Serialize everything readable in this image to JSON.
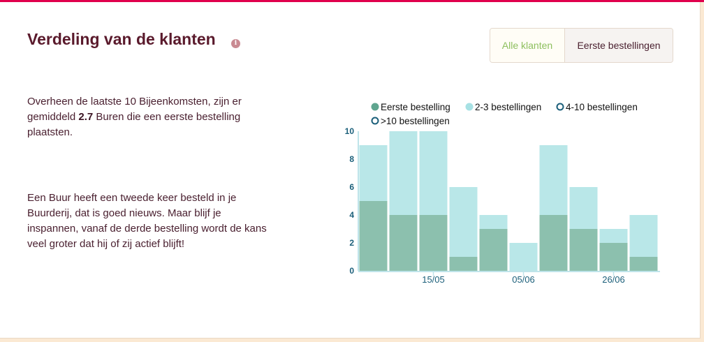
{
  "header": {
    "title": "Verdeling van de klanten",
    "info_icon": "info-icon"
  },
  "toggle": {
    "active_label": "Alle klanten",
    "inactive_label": "Eerste bestellingen"
  },
  "text": {
    "p1_before": "Overheen de laatste 10 Bijeenkomsten, zijn er gemiddeld ",
    "p1_value": "2.7",
    "p1_after": " Buren die een eerste bestelling plaatsten.",
    "p2": "Een Buur heeft een tweede keer besteld in je Buurderij, dat is goed nieuws. Maar blijf je inspannen, vanaf de derde bestelling wordt de kans veel groter dat hij of zij actief blijft!"
  },
  "colors": {
    "first": "#8cc0ae",
    "second": "#b9e7e8",
    "axis": "#bfe4ea",
    "tick": "#1b5f7a",
    "legend_first": "#5fa58f",
    "legend_second": "#a7e1e4",
    "legend_ring": "#1b5f7a"
  },
  "chart_data": {
    "type": "bar",
    "stacked": true,
    "ylim": [
      0,
      10
    ],
    "yticks": [
      "0",
      "2",
      "4",
      "6",
      "8",
      "10"
    ],
    "xticks": [
      {
        "index": 2.5,
        "label": "15/05"
      },
      {
        "index": 5.5,
        "label": "05/06"
      },
      {
        "index": 8.5,
        "label": "26/06"
      }
    ],
    "series": [
      {
        "name": "Eerste bestelling",
        "values": [
          5,
          4,
          4,
          1,
          3,
          0,
          4,
          3,
          2,
          1
        ]
      },
      {
        "name": "2-3 bestellingen",
        "values": [
          4,
          6,
          6,
          5,
          1,
          2,
          5,
          3,
          1,
          3
        ]
      },
      {
        "name": "4-10 bestellingen",
        "values": [
          0,
          0,
          0,
          0,
          0,
          0,
          0,
          0,
          0,
          0
        ]
      },
      {
        "name": ">10 bestellingen",
        "values": [
          0,
          0,
          0,
          0,
          0,
          0,
          0,
          0,
          0,
          0
        ]
      }
    ]
  }
}
